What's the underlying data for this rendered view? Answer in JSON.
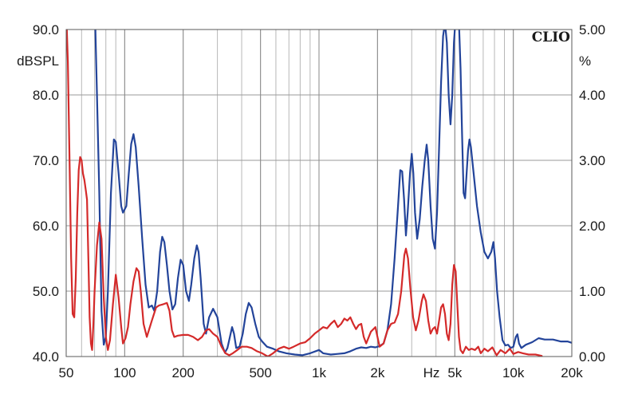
{
  "chart_data": {
    "type": "line",
    "brand": "CLIO",
    "x_unit": "Hz",
    "x_scale": "log",
    "xlim": [
      50,
      20000
    ],
    "x_ticks": [
      {
        "value": 50,
        "label": "50"
      },
      {
        "value": 100,
        "label": "100"
      },
      {
        "value": 200,
        "label": "200"
      },
      {
        "value": 500,
        "label": "500"
      },
      {
        "value": 1000,
        "label": "1k"
      },
      {
        "value": 2000,
        "label": "2k"
      },
      {
        "value": 5000,
        "label": "5k"
      },
      {
        "value": 10000,
        "label": "10k"
      },
      {
        "value": 20000,
        "label": "20k"
      }
    ],
    "y_left": {
      "label": "dBSPL",
      "lim": [
        40,
        90
      ],
      "ticks": [
        {
          "value": 90,
          "label": "90.0"
        },
        {
          "value": 80,
          "label": "80.0"
        },
        {
          "value": 70,
          "label": "70.0"
        },
        {
          "value": 60,
          "label": "60.0"
        },
        {
          "value": 50,
          "label": "50.0"
        },
        {
          "value": 40,
          "label": "40.0"
        }
      ]
    },
    "y_right": {
      "label": "%",
      "lim": [
        0,
        5
      ],
      "ticks": [
        {
          "value": 5,
          "label": "5.00"
        },
        {
          "value": 4,
          "label": "4.00"
        },
        {
          "value": 3,
          "label": "3.00"
        },
        {
          "value": 2,
          "label": "2.00"
        },
        {
          "value": 1,
          "label": "1.00"
        },
        {
          "value": 0,
          "label": "0.00"
        }
      ]
    },
    "grid": true,
    "series": [
      {
        "color": "#23449a",
        "axis": "left",
        "points": [
          [
            70,
            95
          ],
          [
            72,
            80
          ],
          [
            74,
            65
          ],
          [
            76,
            47
          ],
          [
            78,
            41.8
          ],
          [
            80,
            43
          ],
          [
            82,
            50
          ],
          [
            85,
            65
          ],
          [
            88,
            73.2
          ],
          [
            90,
            72.8
          ],
          [
            93,
            68
          ],
          [
            96,
            63
          ],
          [
            98,
            62
          ],
          [
            102,
            63
          ],
          [
            105,
            68
          ],
          [
            108,
            72.5
          ],
          [
            111,
            74
          ],
          [
            114,
            72
          ],
          [
            118,
            66
          ],
          [
            123,
            58
          ],
          [
            128,
            51
          ],
          [
            133,
            47.5
          ],
          [
            138,
            47.8
          ],
          [
            142,
            47
          ],
          [
            147,
            50
          ],
          [
            152,
            56
          ],
          [
            156,
            58.3
          ],
          [
            160,
            57.5
          ],
          [
            165,
            54
          ],
          [
            170,
            50
          ],
          [
            176,
            47.2
          ],
          [
            182,
            48
          ],
          [
            188,
            52
          ],
          [
            194,
            54.8
          ],
          [
            200,
            54
          ],
          [
            207,
            50
          ],
          [
            214,
            48.5
          ],
          [
            220,
            51
          ],
          [
            228,
            55
          ],
          [
            235,
            57
          ],
          [
            240,
            56
          ],
          [
            246,
            52
          ],
          [
            255,
            45
          ],
          [
            262,
            43.5
          ],
          [
            272,
            46
          ],
          [
            285,
            47.3
          ],
          [
            300,
            46
          ],
          [
            315,
            42
          ],
          [
            328,
            40.6
          ],
          [
            338,
            41.3
          ],
          [
            348,
            43
          ],
          [
            357,
            44.5
          ],
          [
            365,
            43.5
          ],
          [
            375,
            41.3
          ],
          [
            390,
            41.5
          ],
          [
            405,
            43.5
          ],
          [
            420,
            46.5
          ],
          [
            435,
            48.2
          ],
          [
            450,
            47.5
          ],
          [
            470,
            45
          ],
          [
            490,
            43
          ],
          [
            510,
            42.3
          ],
          [
            540,
            41.5
          ],
          [
            580,
            41.2
          ],
          [
            620,
            40.8
          ],
          [
            680,
            40.5
          ],
          [
            750,
            40.3
          ],
          [
            820,
            40.2
          ],
          [
            900,
            40.5
          ],
          [
            1000,
            41
          ],
          [
            1050,
            40.5
          ],
          [
            1150,
            40.3
          ],
          [
            1250,
            40.4
          ],
          [
            1350,
            40.5
          ],
          [
            1450,
            40.8
          ],
          [
            1550,
            41.2
          ],
          [
            1650,
            41.4
          ],
          [
            1750,
            41.3
          ],
          [
            1850,
            41.5
          ],
          [
            1950,
            41.4
          ],
          [
            2050,
            41.6
          ],
          [
            2150,
            42
          ],
          [
            2250,
            44
          ],
          [
            2350,
            48
          ],
          [
            2450,
            55
          ],
          [
            2550,
            63
          ],
          [
            2620,
            68.5
          ],
          [
            2680,
            68.3
          ],
          [
            2740,
            64
          ],
          [
            2800,
            58.5
          ],
          [
            2860,
            62
          ],
          [
            2940,
            68
          ],
          [
            3000,
            71
          ],
          [
            3060,
            68
          ],
          [
            3120,
            62
          ],
          [
            3200,
            58
          ],
          [
            3300,
            61
          ],
          [
            3400,
            66
          ],
          [
            3500,
            70
          ],
          [
            3580,
            72.4
          ],
          [
            3650,
            70
          ],
          [
            3750,
            63
          ],
          [
            3850,
            58
          ],
          [
            3950,
            56.5
          ],
          [
            4050,
            62
          ],
          [
            4150,
            72
          ],
          [
            4250,
            82
          ],
          [
            4350,
            89
          ],
          [
            4450,
            91
          ],
          [
            4550,
            88
          ],
          [
            4650,
            80
          ],
          [
            4750,
            75.5
          ],
          [
            4850,
            80
          ],
          [
            4950,
            88
          ],
          [
            5050,
            92
          ],
          [
            5150,
            94
          ],
          [
            5250,
            91
          ],
          [
            5350,
            84
          ],
          [
            5450,
            74
          ],
          [
            5550,
            65
          ],
          [
            5650,
            64.2
          ],
          [
            5750,
            68
          ],
          [
            5850,
            71.5
          ],
          [
            5950,
            73.2
          ],
          [
            6050,
            72
          ],
          [
            6250,
            68
          ],
          [
            6500,
            63
          ],
          [
            6800,
            59
          ],
          [
            7100,
            56
          ],
          [
            7400,
            55
          ],
          [
            7700,
            56
          ],
          [
            7900,
            57.5
          ],
          [
            8050,
            55
          ],
          [
            8250,
            50
          ],
          [
            8500,
            46
          ],
          [
            8800,
            42.5
          ],
          [
            9100,
            41.7
          ],
          [
            9400,
            41.8
          ],
          [
            9700,
            41.3
          ],
          [
            10000,
            41.5
          ],
          [
            10300,
            43
          ],
          [
            10500,
            43.4
          ],
          [
            10700,
            42
          ],
          [
            11000,
            41.3
          ],
          [
            11600,
            41.8
          ],
          [
            12500,
            42.2
          ],
          [
            13500,
            42.8
          ],
          [
            14500,
            42.6
          ],
          [
            16000,
            42.6
          ],
          [
            17500,
            42.3
          ],
          [
            19000,
            42.3
          ],
          [
            20000,
            42.1
          ]
        ]
      },
      {
        "color": "#d42a2a",
        "axis": "right",
        "points": [
          [
            50,
            5.3
          ],
          [
            51,
            4.5
          ],
          [
            52,
            3.0
          ],
          [
            53,
            1.5
          ],
          [
            54,
            0.65
          ],
          [
            55,
            0.6
          ],
          [
            56,
            1.2
          ],
          [
            57,
            2.2
          ],
          [
            58,
            2.85
          ],
          [
            59,
            3.05
          ],
          [
            60,
            3.0
          ],
          [
            61,
            2.8
          ],
          [
            62,
            2.7
          ],
          [
            63,
            2.55
          ],
          [
            64,
            2.4
          ],
          [
            65,
            1.5
          ],
          [
            66,
            0.6
          ],
          [
            67,
            0.2
          ],
          [
            68,
            0.1
          ],
          [
            69,
            0.5
          ],
          [
            70,
            1.0
          ],
          [
            72,
            1.7
          ],
          [
            74,
            2.05
          ],
          [
            76,
            1.8
          ],
          [
            78,
            0.9
          ],
          [
            80,
            0.3
          ],
          [
            82,
            0.1
          ],
          [
            84,
            0.25
          ],
          [
            87,
            0.8
          ],
          [
            90,
            1.25
          ],
          [
            93,
            0.9
          ],
          [
            96,
            0.45
          ],
          [
            98,
            0.2
          ],
          [
            101,
            0.28
          ],
          [
            104,
            0.45
          ],
          [
            107,
            0.8
          ],
          [
            111,
            1.15
          ],
          [
            115,
            1.35
          ],
          [
            118,
            1.3
          ],
          [
            121,
            1.0
          ],
          [
            125,
            0.5
          ],
          [
            130,
            0.3
          ],
          [
            138,
            0.55
          ],
          [
            145,
            0.75
          ],
          [
            150,
            0.78
          ],
          [
            158,
            0.8
          ],
          [
            165,
            0.82
          ],
          [
            170,
            0.7
          ],
          [
            175,
            0.4
          ],
          [
            180,
            0.3
          ],
          [
            188,
            0.32
          ],
          [
            200,
            0.33
          ],
          [
            212,
            0.33
          ],
          [
            225,
            0.3
          ],
          [
            238,
            0.25
          ],
          [
            250,
            0.3
          ],
          [
            262,
            0.4
          ],
          [
            272,
            0.42
          ],
          [
            285,
            0.35
          ],
          [
            300,
            0.3
          ],
          [
            315,
            0.15
          ],
          [
            330,
            0.05
          ],
          [
            345,
            0.02
          ],
          [
            360,
            0.05
          ],
          [
            380,
            0.1
          ],
          [
            400,
            0.15
          ],
          [
            425,
            0.15
          ],
          [
            450,
            0.13
          ],
          [
            480,
            0.08
          ],
          [
            510,
            0.05
          ],
          [
            545,
            0.0
          ],
          [
            580,
            0.05
          ],
          [
            620,
            0.12
          ],
          [
            660,
            0.15
          ],
          [
            700,
            0.12
          ],
          [
            740,
            0.15
          ],
          [
            800,
            0.2
          ],
          [
            850,
            0.22
          ],
          [
            900,
            0.28
          ],
          [
            950,
            0.35
          ],
          [
            1000,
            0.4
          ],
          [
            1050,
            0.45
          ],
          [
            1100,
            0.43
          ],
          [
            1150,
            0.5
          ],
          [
            1200,
            0.55
          ],
          [
            1250,
            0.45
          ],
          [
            1300,
            0.5
          ],
          [
            1350,
            0.58
          ],
          [
            1400,
            0.55
          ],
          [
            1450,
            0.6
          ],
          [
            1500,
            0.5
          ],
          [
            1550,
            0.42
          ],
          [
            1600,
            0.48
          ],
          [
            1650,
            0.5
          ],
          [
            1700,
            0.3
          ],
          [
            1750,
            0.2
          ],
          [
            1850,
            0.38
          ],
          [
            1950,
            0.45
          ],
          [
            2000,
            0.3
          ],
          [
            2050,
            0.15
          ],
          [
            2150,
            0.2
          ],
          [
            2250,
            0.4
          ],
          [
            2350,
            0.5
          ],
          [
            2450,
            0.52
          ],
          [
            2550,
            0.65
          ],
          [
            2650,
            1.0
          ],
          [
            2750,
            1.55
          ],
          [
            2800,
            1.65
          ],
          [
            2870,
            1.5
          ],
          [
            2950,
            1.05
          ],
          [
            3050,
            0.6
          ],
          [
            3150,
            0.4
          ],
          [
            3250,
            0.55
          ],
          [
            3380,
            0.85
          ],
          [
            3450,
            0.95
          ],
          [
            3550,
            0.85
          ],
          [
            3650,
            0.55
          ],
          [
            3750,
            0.35
          ],
          [
            3850,
            0.42
          ],
          [
            3950,
            0.45
          ],
          [
            4050,
            0.35
          ],
          [
            4150,
            0.55
          ],
          [
            4250,
            0.75
          ],
          [
            4350,
            0.8
          ],
          [
            4450,
            0.65
          ],
          [
            4550,
            0.35
          ],
          [
            4650,
            0.25
          ],
          [
            4750,
            0.5
          ],
          [
            4850,
            1.1
          ],
          [
            4950,
            1.4
          ],
          [
            5050,
            1.3
          ],
          [
            5150,
            0.8
          ],
          [
            5250,
            0.3
          ],
          [
            5350,
            0.1
          ],
          [
            5500,
            0.05
          ],
          [
            5700,
            0.15
          ],
          [
            5900,
            0.1
          ],
          [
            6100,
            0.12
          ],
          [
            6350,
            0.1
          ],
          [
            6600,
            0.15
          ],
          [
            6800,
            0.05
          ],
          [
            7100,
            0.12
          ],
          [
            7400,
            0.08
          ],
          [
            7800,
            0.14
          ],
          [
            8200,
            0.02
          ],
          [
            8600,
            0.1
          ],
          [
            9100,
            0.05
          ],
          [
            9600,
            0.12
          ],
          [
            10000,
            0.04
          ],
          [
            10600,
            0.07
          ],
          [
            11200,
            0.05
          ],
          [
            12000,
            0.03
          ],
          [
            13000,
            0.03
          ],
          [
            14000,
            0.01
          ]
        ]
      }
    ]
  }
}
